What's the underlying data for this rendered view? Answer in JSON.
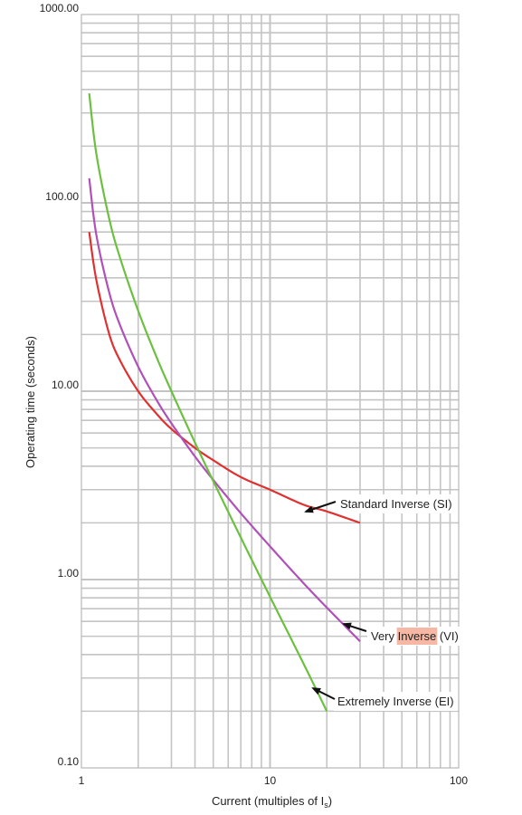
{
  "chart_data": {
    "type": "line",
    "xscale": "log",
    "yscale": "log",
    "xlim": [
      1,
      100
    ],
    "ylim": [
      0.1,
      1000
    ],
    "grid": true,
    "xlabel": "Current (multiples of I",
    "xlabel_sub": "s",
    "xlabel_end": ")",
    "ylabel": "Operating time (seconds)",
    "x_ticks": [
      "1",
      "10",
      "100"
    ],
    "y_ticks": [
      "0.10",
      "1.00",
      "10.00",
      "100.00",
      "1000.00"
    ],
    "series": [
      {
        "name": "Standard Inverse (SI)",
        "color": "#e03030",
        "x": [
          1.1,
          1.2,
          1.4,
          1.6,
          2,
          2.5,
          3,
          4,
          5,
          7,
          10,
          15,
          20,
          30
        ],
        "y": [
          70,
          38.9,
          20.3,
          14.6,
          10.0,
          7.6,
          6.3,
          5.0,
          4.3,
          3.5,
          3.0,
          2.5,
          2.3,
          2.0
        ]
      },
      {
        "name": "Very Inverse (VI)",
        "color": "#b050b8",
        "x": [
          1.1,
          1.2,
          1.4,
          1.6,
          2,
          2.5,
          3,
          4,
          5,
          7,
          10,
          15,
          20,
          30
        ],
        "y": [
          135,
          67.5,
          33.8,
          22.5,
          13.5,
          9.0,
          6.75,
          4.5,
          3.38,
          2.25,
          1.5,
          0.96,
          0.71,
          0.47
        ]
      },
      {
        "name": "Extremely Inverse (EI)",
        "color": "#6cc040",
        "x": [
          1.1,
          1.2,
          1.4,
          1.6,
          2,
          2.5,
          3,
          4,
          5,
          7,
          10,
          15,
          20
        ],
        "y": [
          381,
          182,
          83.3,
          51.3,
          26.7,
          15.2,
          10.0,
          5.33,
          3.33,
          1.67,
          0.81,
          0.36,
          0.2
        ]
      }
    ],
    "annotations": [
      {
        "text": "Standard Inverse (SI)",
        "series": "Standard Inverse (SI)"
      },
      {
        "text_before": "Very ",
        "text_highlight": "Inverse",
        "text_after": " (VI)",
        "highlight_color": "#f6b8a4",
        "series": "Very Inverse (VI)"
      },
      {
        "text": "Extremely Inverse (EI)",
        "series": "Extremely Inverse (EI)"
      }
    ]
  }
}
